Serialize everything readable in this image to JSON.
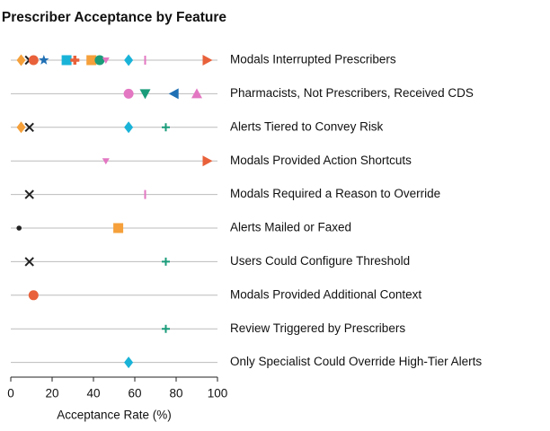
{
  "chart_data": {
    "type": "dot",
    "title": "Prescriber Acceptance by Feature",
    "xlabel": "Acceptance Rate (%)",
    "categories": [
      "Modals Interrupted Prescribers",
      "Pharmacists, Not Prescribers, Received CDS",
      "Alerts Tiered to Convey Risk",
      "Modals Provided Action Shortcuts",
      "Modals Required a Reason to Override",
      "Alerts Mailed or Faxed",
      "Users Could Configure Threshold",
      "Modals Provided Additional Context",
      "Review Triggered by Prescribers",
      "Only Specialist Could Override High-Tier Alerts"
    ],
    "xlim": [
      0,
      100
    ],
    "xticks": [
      0,
      20,
      40,
      60,
      80,
      100
    ],
    "series": [
      {
        "marker": "diamond",
        "color": "#f5a03a",
        "values": [
          5,
          null,
          5,
          null,
          null,
          null,
          null,
          null,
          null,
          null
        ]
      },
      {
        "marker": "x",
        "color": "#222222",
        "values": [
          9,
          null,
          9,
          null,
          9,
          null,
          9,
          null,
          null,
          null
        ]
      },
      {
        "marker": "circle",
        "color": "#e8613a",
        "values": [
          11,
          null,
          null,
          null,
          null,
          null,
          null,
          11,
          null,
          null
        ]
      },
      {
        "marker": "star",
        "color": "#1f6fb4",
        "values": [
          16,
          null,
          null,
          null,
          null,
          null,
          null,
          null,
          null,
          null
        ]
      },
      {
        "marker": "square",
        "color": "#1ab3d8",
        "values": [
          27,
          null,
          null,
          null,
          null,
          null,
          null,
          null,
          null,
          null
        ]
      },
      {
        "marker": "plus-bold",
        "color": "#e8613a",
        "values": [
          31,
          null,
          null,
          null,
          null,
          null,
          null,
          null,
          null,
          null
        ]
      },
      {
        "marker": "square",
        "color": "#f5a03a",
        "values": [
          39,
          null,
          null,
          null,
          null,
          52,
          null,
          null,
          null,
          null
        ]
      },
      {
        "marker": "circle",
        "color": "#1a9c7a",
        "values": [
          43,
          null,
          null,
          null,
          null,
          null,
          null,
          null,
          null,
          null
        ]
      },
      {
        "marker": "tri-down-small",
        "color": "#e377c2",
        "values": [
          46,
          null,
          null,
          46,
          null,
          null,
          null,
          null,
          null,
          null
        ]
      },
      {
        "marker": "diamond",
        "color": "#1ab3d8",
        "values": [
          57,
          null,
          57,
          null,
          null,
          null,
          null,
          null,
          null,
          57
        ]
      },
      {
        "marker": "vline",
        "color": "#e377c2",
        "values": [
          65,
          null,
          null,
          null,
          65,
          null,
          null,
          null,
          null,
          null
        ]
      },
      {
        "marker": "tri-right",
        "color": "#e8613a",
        "values": [
          95,
          null,
          null,
          95,
          null,
          null,
          null,
          null,
          null,
          null
        ]
      },
      {
        "marker": "circle",
        "color": "#e377c2",
        "values": [
          null,
          57,
          null,
          null,
          null,
          null,
          null,
          null,
          null,
          null
        ]
      },
      {
        "marker": "tri-down",
        "color": "#1a9c7a",
        "values": [
          null,
          65,
          null,
          null,
          null,
          null,
          null,
          null,
          null,
          null
        ]
      },
      {
        "marker": "tri-left",
        "color": "#1f6fb4",
        "values": [
          null,
          79,
          null,
          null,
          null,
          null,
          null,
          null,
          null,
          null
        ]
      },
      {
        "marker": "tri-up",
        "color": "#e377c2",
        "values": [
          null,
          90,
          null,
          null,
          null,
          null,
          null,
          null,
          null,
          null
        ]
      },
      {
        "marker": "plus",
        "color": "#1a9c7a",
        "values": [
          null,
          null,
          75,
          null,
          null,
          null,
          75,
          null,
          75,
          null
        ]
      },
      {
        "marker": "dot",
        "color": "#222222",
        "values": [
          null,
          null,
          null,
          null,
          null,
          4,
          null,
          null,
          null,
          null
        ]
      }
    ]
  }
}
